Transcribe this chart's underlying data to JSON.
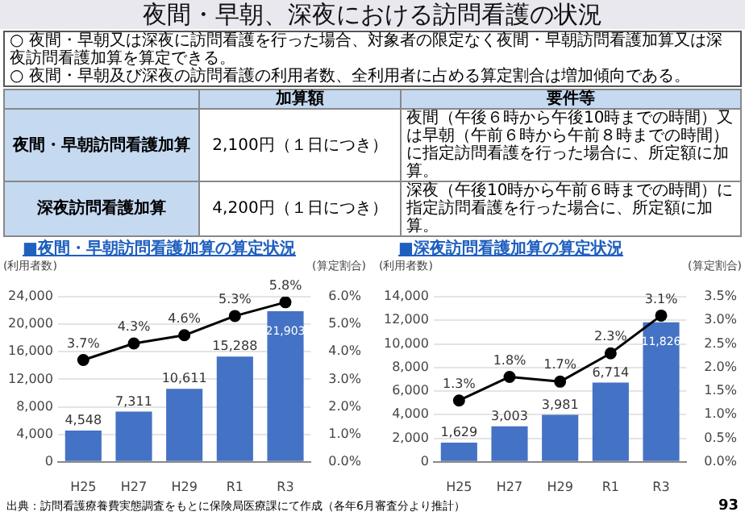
{
  "chart_data": [
    {
      "type": "other",
      "title": "夜間・早朝、深夜における訪問看護の状況",
      "annotations": [
        "○ 夜間・早朝又は深夜に訪問看護を行った場合、対象者の限定なく夜間・早朝訪問看護加算又は深夜訪問看護加算を算定できる。",
        "○ 夜間・早朝及び深夜の訪問看護の利用者数、全利用者に占める算定割合は増加傾向である。",
        "加算額",
        "要件等",
        "夜間・早朝訪問看護加算",
        "2,100円（１日につき）",
        "夜間（午後６時から午後10時までの時間）又は早朝（午前６時から午前８時までの時間）に指定訪問看護を行った場合に、所定額に加算。",
        "深夜訪問看護加算",
        "4,200円（１日につき）",
        "深夜（午後10時から午前６時までの時間）に指定訪問看護を行った場合に、所定額に加算。"
      ]
    },
    {
      "type": "bar",
      "title": "■夜間・早朝訪問看護加算の算定状況",
      "ylabel": "(利用者数)",
      "y2label": "(算定割合)",
      "categories": [
        "H25",
        "H27",
        "H29",
        "R1",
        "R3"
      ],
      "series": [
        {
          "color": "#4472c4",
          "values": [
            4548,
            7311,
            10611,
            15288,
            21903
          ],
          "value_labels": [
            "4,548",
            "7,311",
            "10,611",
            "15,288",
            "21,903"
          ]
        },
        {
          "type": "line",
          "axis": "y2",
          "color": "#000000",
          "values": [
            3.7,
            4.3,
            4.6,
            5.3,
            5.8
          ],
          "value_labels": [
            "3.7%",
            "4.3%",
            "4.6%",
            "5.3%",
            "5.8%"
          ]
        }
      ],
      "ylim": [
        0,
        24000
      ],
      "yticks": [
        0,
        {
          "value": 4000,
          "label": "4,000"
        },
        {
          "value": 8000,
          "label": "8,000"
        },
        {
          "value": 12000,
          "label": "12,000"
        },
        {
          "value": 16000,
          "label": "16,000"
        },
        {
          "value": 20000,
          "label": "20,000"
        },
        {
          "value": 24000,
          "label": "24,000"
        }
      ],
      "y2lim": [
        0,
        6
      ],
      "y2ticks": [
        {
          "value": 0,
          "label": "0.0%"
        },
        {
          "value": 1,
          "label": "1.0%"
        },
        {
          "value": 2,
          "label": "2.0%"
        },
        {
          "value": 3,
          "label": "3.0%"
        },
        {
          "value": 4,
          "label": "4.0%"
        },
        {
          "value": 5,
          "label": "5.0%"
        },
        {
          "value": 6,
          "label": "6.0%"
        }
      ],
      "grid": "y",
      "marker": "circle",
      "line_style": "solid"
    },
    {
      "type": "bar",
      "title": "■深夜訪問看護加算の算定状況",
      "ylabel": "(利用者数)",
      "y2label": "(算定割合)",
      "categories": [
        "H25",
        "H27",
        "H29",
        "R1",
        "R3"
      ],
      "series": [
        {
          "color": "#4472c4",
          "values": [
            1629,
            3003,
            3981,
            6714,
            11826
          ],
          "value_labels": [
            "1,629",
            "3,003",
            "3,981",
            "6,714",
            "11,826"
          ]
        },
        {
          "type": "line",
          "axis": "y2",
          "color": "#000000",
          "values": [
            1.3,
            1.8,
            1.7,
            2.3,
            3.1
          ],
          "value_labels": [
            "1.3%",
            "1.8%",
            "1.7%",
            "2.3%",
            "3.1%"
          ]
        }
      ],
      "ylim": [
        0,
        14000
      ],
      "yticks": [
        0,
        {
          "value": 2000,
          "label": "2,000"
        },
        {
          "value": 4000,
          "label": "4,000"
        },
        {
          "value": 6000,
          "label": "6,000"
        },
        {
          "value": 8000,
          "label": "8,000"
        },
        {
          "value": 10000,
          "label": "10,000"
        },
        {
          "value": 12000,
          "label": "12,000"
        },
        {
          "value": 14000,
          "label": "14,000"
        }
      ],
      "y2lim": [
        0,
        3.5
      ],
      "y2ticks": [
        {
          "value": 0,
          "label": "0.0%"
        },
        {
          "value": 0.5,
          "label": "0.5%"
        },
        {
          "value": 1,
          "label": "1.0%"
        },
        {
          "value": 1.5,
          "label": "1.5%"
        },
        {
          "value": 2,
          "label": "2.0%"
        },
        {
          "value": 2.5,
          "label": "2.5%"
        },
        {
          "value": 3,
          "label": "3.0%"
        },
        {
          "value": 3.5,
          "label": "3.5%"
        }
      ],
      "grid": "y",
      "marker": "circle",
      "line_style": "solid",
      "annotations": [
        "出典：訪問看護療養費実態調査をもとに保険局医療課にて作成（各年6月審査分より推計）",
        "93"
      ]
    }
  ]
}
